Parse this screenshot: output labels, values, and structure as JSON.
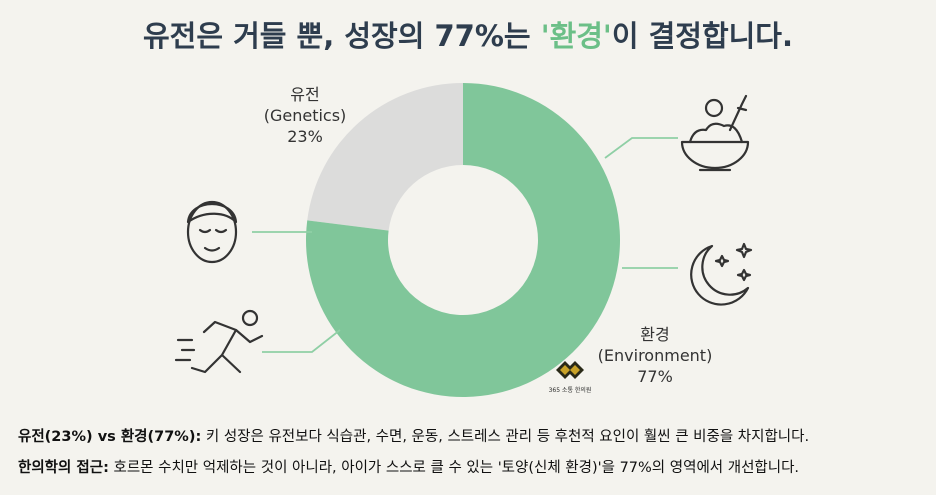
{
  "chart_data": {
    "type": "donut",
    "title": [
      "유전은 거들 뿐, 성장의 77%는 ",
      "'환경'",
      "이 결정합니다."
    ],
    "categories": [
      "유전",
      "환경"
    ],
    "category_subtitles": [
      "(Genetics)",
      "(Environment)"
    ],
    "values": [
      23,
      77
    ],
    "value_labels": [
      "23%",
      "77%"
    ],
    "colors": [
      "#dcdcdb",
      "#80c69a"
    ],
    "logo": "365 소통 한의원"
  },
  "notes": [
    {
      "label": "유전(23%) vs 환경(77%):",
      "text": " 키 성장은 유전보다 식습관, 수면, 운동, 스트레스 관리 등 후천적 요인이 훨씬 큰 비중을 차지합니다."
    },
    {
      "label": "한의학의 접근:",
      "text": " 호르몬 수치만 억제하는 것이 아니라, 아이가 스스로 클 수 있는 '토양(신체 환경)'을 77%의 영역에서 개선합니다."
    }
  ]
}
